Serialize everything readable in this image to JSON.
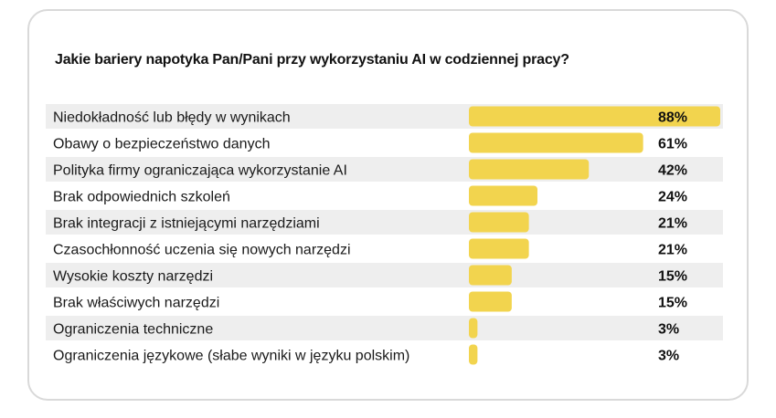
{
  "colors": {
    "bar": "#f2d44e",
    "row_stripe": "#eeeeee",
    "card_border": "#d9d9d9"
  },
  "chart_data": {
    "type": "bar",
    "orientation": "horizontal",
    "title": "Jakie bariery napotyka Pan/Pani przy wykorzystaniu AI w codziennej pracy?",
    "categories": [
      "Niedokładność lub błędy w wynikach",
      "Obawy o bezpieczeństwo danych",
      "Polityka firmy ograniczająca wykorzystanie AI",
      "Brak odpowiednich szkoleń",
      "Brak integracji z istniejącymi narzędziami",
      "Czasochłonność uczenia się nowych narzędzi",
      "Wysokie koszty narzędzi",
      "Brak właściwych narzędzi",
      "Ograniczenia techniczne",
      "Ograniczenia językowe (słabe wyniki w języku polskim)"
    ],
    "values": [
      88,
      61,
      42,
      24,
      21,
      21,
      15,
      15,
      3,
      3
    ],
    "value_labels": [
      "88%",
      "61%",
      "42%",
      "24%",
      "21%",
      "21%",
      "15%",
      "15%",
      "3%",
      "3%"
    ],
    "xlim": [
      0,
      88
    ],
    "grid": false,
    "legend": "none"
  }
}
